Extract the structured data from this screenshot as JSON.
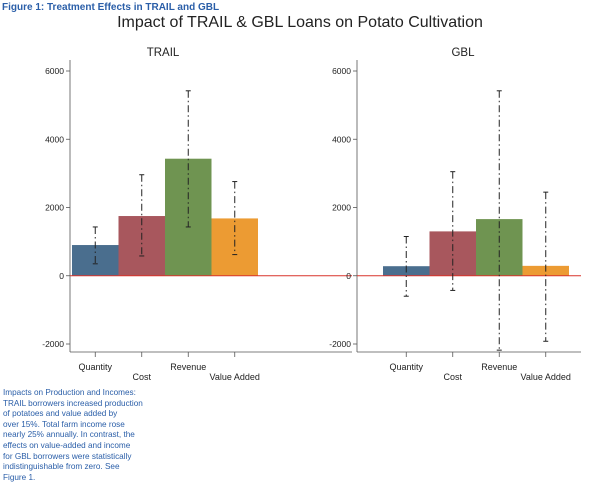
{
  "figure_label": "Figure 1: Treatment Effects in TRAIL and GBL",
  "title": "Impact of TRAIL & GBL Loans on Potato Cultivation",
  "caption_lines": [
    "Impacts on Production and Incomes:",
    "TRAIL borrowers increased production",
    "of potatoes and value added by",
    "over 15%. Total farm income rose",
    "nearly 25% annually. In contrast, the",
    "effects on value-added and income",
    "for GBL borrowers were statistically",
    "indistinguishable from zero. See",
    "Figure 1."
  ],
  "colors": {
    "Quantity": "#4a6e8e",
    "Cost": "#a8575d",
    "Revenue": "#6f9451",
    "Value Added": "#ec9b33",
    "zero_line": "#d9342b",
    "error_bar": "#222222"
  },
  "chart_data": [
    {
      "type": "bar",
      "title": "TRAIL",
      "categories": [
        "Quantity",
        "Cost",
        "Revenue",
        "Value Added"
      ],
      "values": [
        900,
        1750,
        3430,
        1680
      ],
      "ci_low": [
        350,
        580,
        1430,
        620
      ],
      "ci_high": [
        1430,
        2960,
        5420,
        2760
      ],
      "yticks": [
        -2000,
        0,
        2000,
        4000,
        6000
      ],
      "ylim": [
        -2000,
        6000
      ]
    },
    {
      "type": "bar",
      "title": "GBL",
      "categories": [
        "Quantity",
        "Cost",
        "Revenue",
        "Value Added"
      ],
      "values": [
        280,
        1300,
        1660,
        290
      ],
      "ci_low": [
        -600,
        -430,
        -2180,
        -1920
      ],
      "ci_high": [
        1150,
        3050,
        5420,
        2450
      ],
      "yticks": [
        -2000,
        0,
        2000,
        4000,
        6000
      ],
      "ylim": [
        -2000,
        6000
      ]
    }
  ]
}
